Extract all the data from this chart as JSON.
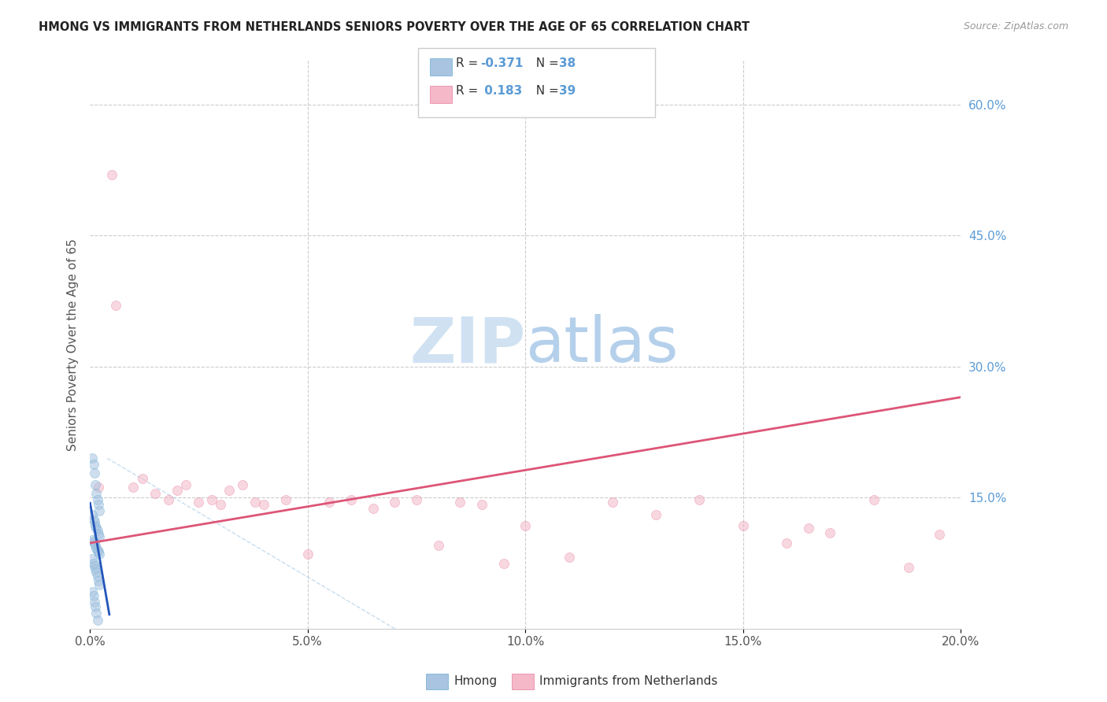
{
  "title": "HMONG VS IMMIGRANTS FROM NETHERLANDS SENIORS POVERTY OVER THE AGE OF 65 CORRELATION CHART",
  "source": "Source: ZipAtlas.com",
  "ylabel": "Seniors Poverty Over the Age of 65",
  "xlim": [
    0,
    0.2
  ],
  "ylim": [
    0,
    0.65
  ],
  "hmong_color": "#a8c4e0",
  "hmong_edge_color": "#6baed6",
  "netherlands_color": "#f4b8c8",
  "netherlands_edge_color": "#e87fa0",
  "trend_blue": "#2255bb",
  "trend_pink": "#dd5577",
  "axis_color": "#5b9bd5",
  "grid_color": "#cccccc",
  "background_color": "#ffffff",
  "watermark_color": "#dce8f5",
  "hmong_label": "Hmong",
  "netherlands_label": "Immigrants from Netherlands",
  "hmong_x": [
    0.0005,
    0.0008,
    0.001,
    0.0012,
    0.0015,
    0.0018,
    0.002,
    0.0022,
    0.0005,
    0.0008,
    0.001,
    0.0012,
    0.0015,
    0.0018,
    0.002,
    0.0022,
    0.0005,
    0.0008,
    0.001,
    0.0012,
    0.0015,
    0.0018,
    0.002,
    0.0022,
    0.0005,
    0.0008,
    0.001,
    0.0012,
    0.0015,
    0.0018,
    0.002,
    0.0022,
    0.0005,
    0.0008,
    0.001,
    0.0012,
    0.0015,
    0.0018
  ],
  "hmong_y": [
    0.195,
    0.188,
    0.178,
    0.165,
    0.155,
    0.148,
    0.142,
    0.135,
    0.13,
    0.125,
    0.122,
    0.118,
    0.115,
    0.112,
    0.108,
    0.105,
    0.102,
    0.1,
    0.098,
    0.095,
    0.092,
    0.09,
    0.088,
    0.085,
    0.08,
    0.075,
    0.072,
    0.068,
    0.065,
    0.06,
    0.055,
    0.05,
    0.042,
    0.038,
    0.03,
    0.025,
    0.018,
    0.01
  ],
  "netherlands_x": [
    0.002,
    0.005,
    0.006,
    0.01,
    0.012,
    0.015,
    0.018,
    0.02,
    0.022,
    0.025,
    0.028,
    0.03,
    0.032,
    0.035,
    0.038,
    0.04,
    0.045,
    0.05,
    0.055,
    0.06,
    0.065,
    0.07,
    0.075,
    0.08,
    0.085,
    0.09,
    0.095,
    0.1,
    0.11,
    0.12,
    0.13,
    0.14,
    0.15,
    0.16,
    0.165,
    0.17,
    0.18,
    0.188,
    0.195
  ],
  "netherlands_y": [
    0.162,
    0.52,
    0.37,
    0.162,
    0.172,
    0.155,
    0.148,
    0.158,
    0.165,
    0.145,
    0.148,
    0.142,
    0.158,
    0.165,
    0.145,
    0.142,
    0.148,
    0.085,
    0.145,
    0.148,
    0.138,
    0.145,
    0.148,
    0.095,
    0.145,
    0.142,
    0.075,
    0.118,
    0.082,
    0.145,
    0.13,
    0.148,
    0.118,
    0.098,
    0.115,
    0.11,
    0.148,
    0.07,
    0.108
  ],
  "marker_size": 75,
  "marker_alpha": 0.55
}
